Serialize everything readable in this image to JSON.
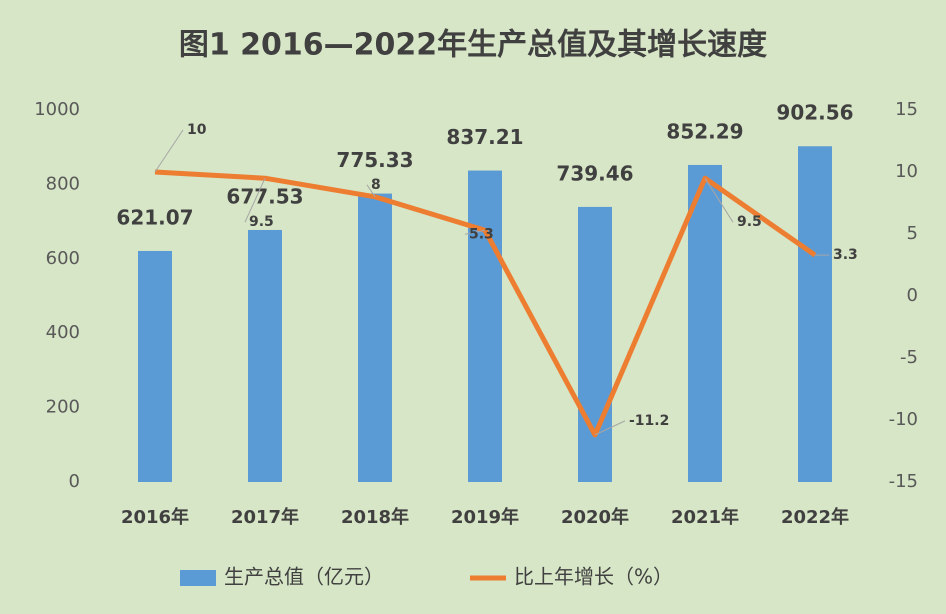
{
  "chart_data": {
    "type": "bar",
    "title": "图1      2016—2022年生产总值及其增长速度",
    "categories": [
      "2016年",
      "2017年",
      "2018年",
      "2019年",
      "2020年",
      "2021年",
      "2022年"
    ],
    "series": [
      {
        "name": "生产总值（亿元）",
        "type": "bar",
        "color": "#5b9bd5",
        "values": [
          621.07,
          677.53,
          775.33,
          837.21,
          739.46,
          852.29,
          902.56
        ]
      },
      {
        "name": "比上年增长（%）",
        "type": "line",
        "axis": "y2",
        "color": "#ed7d31",
        "values": [
          10,
          9.5,
          8,
          5.3,
          -11.2,
          9.5,
          3.3
        ]
      }
    ],
    "ylim": [
      0,
      1000
    ],
    "yticks": [
      0,
      200,
      400,
      600,
      800,
      1000
    ],
    "y2lim": [
      -15,
      15
    ],
    "y2ticks": [
      -15,
      -10,
      -5,
      0,
      5,
      10,
      15
    ],
    "grid": false,
    "legend": "bottom"
  }
}
